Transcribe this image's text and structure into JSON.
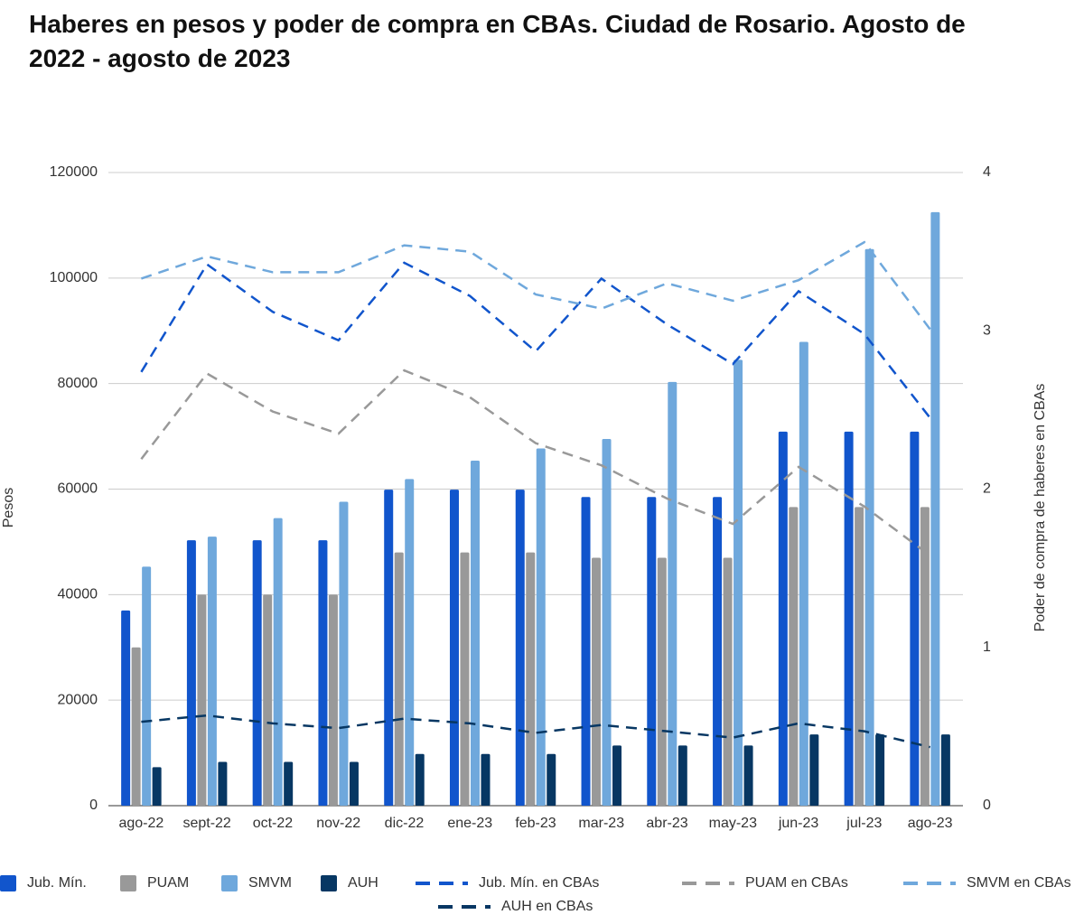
{
  "chart_data": {
    "type": "bar",
    "title": "Haberes en pesos y poder de compra en CBAs. Ciudad de Rosario. Agosto de 2022 - agosto de 2023",
    "y_label": "Pesos",
    "y2_label": "Poder de compra de haberes en CBAs",
    "categories": [
      "ago-22",
      "sept-22",
      "oct-22",
      "nov-22",
      "dic-22",
      "ene-23",
      "feb-23",
      "mar-23",
      "abr-23",
      "may-23",
      "jun-23",
      "jul-23",
      "ago-23"
    ],
    "ylim": [
      0,
      120000
    ],
    "yticks": [
      0,
      20000,
      40000,
      60000,
      80000,
      100000,
      120000
    ],
    "y2lim": [
      0,
      4
    ],
    "y2ticks": [
      0,
      1,
      2,
      3,
      4
    ],
    "grid": true,
    "legend": "bottom",
    "series": [
      {
        "name": "Jub. Mín.",
        "type": "bar",
        "color": "#1155cc",
        "values": [
          37000,
          50300,
          50300,
          50300,
          59900,
          59900,
          59900,
          58500,
          58500,
          58500,
          70900,
          70900,
          70900
        ]
      },
      {
        "name": "PUAM",
        "type": "bar",
        "color": "#999999",
        "values": [
          30000,
          40000,
          40000,
          40000,
          48000,
          48000,
          48000,
          47000,
          47000,
          47000,
          56600,
          56600,
          56600
        ]
      },
      {
        "name": "SMVM",
        "type": "bar",
        "color": "#6fa8dc",
        "values": [
          45300,
          51000,
          54500,
          57600,
          61900,
          65400,
          67700,
          69500,
          80300,
          84500,
          87900,
          105500,
          112500
        ]
      },
      {
        "name": "AUH",
        "type": "bar",
        "color": "#073763",
        "values": [
          7300,
          8300,
          8300,
          8300,
          9800,
          9800,
          9800,
          11400,
          11400,
          11400,
          13500,
          13500,
          13500
        ]
      },
      {
        "name": "Jub. Mín. en CBAs",
        "type": "line",
        "axis": "y2",
        "color": "#1155cc",
        "values": [
          2.74,
          3.42,
          3.12,
          2.94,
          3.43,
          3.22,
          2.87,
          3.33,
          3.04,
          2.79,
          3.25,
          2.98,
          2.45
        ]
      },
      {
        "name": "PUAM en CBAs",
        "type": "line",
        "axis": "y2",
        "color": "#999999",
        "values": [
          2.19,
          2.73,
          2.49,
          2.35,
          2.75,
          2.58,
          2.29,
          2.15,
          1.94,
          1.78,
          2.14,
          1.89,
          1.58
        ]
      },
      {
        "name": "SMVM en CBAs",
        "type": "line",
        "axis": "y2",
        "color": "#6fa8dc",
        "values": [
          3.33,
          3.47,
          3.37,
          3.37,
          3.54,
          3.5,
          3.23,
          3.14,
          3.3,
          3.19,
          3.32,
          3.56,
          3.01
        ]
      },
      {
        "name": "AUH en CBAs",
        "type": "line",
        "axis": "y2",
        "color": "#073763",
        "values": [
          0.53,
          0.57,
          0.52,
          0.49,
          0.55,
          0.52,
          0.46,
          0.51,
          0.47,
          0.43,
          0.52,
          0.47,
          0.37
        ]
      }
    ]
  }
}
